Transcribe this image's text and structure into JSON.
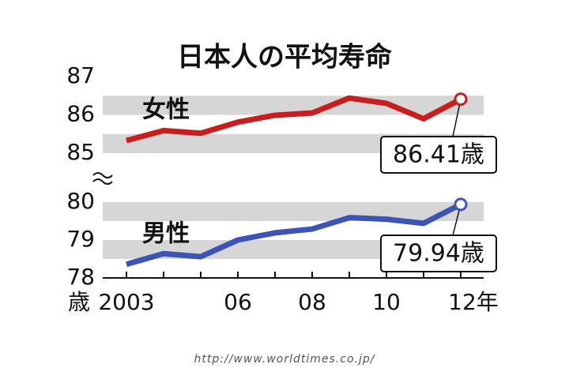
{
  "chart_data": {
    "type": "line",
    "title": "日本人の平均寿命",
    "y_unit": "歳",
    "categories": [
      "2003",
      null,
      null,
      "06",
      null,
      "08",
      null,
      "10",
      null,
      "12年"
    ],
    "ylim": [
      78,
      80
    ],
    "yticks": [
      78,
      79,
      80
    ],
    "y2lim": [
      85,
      87
    ],
    "y2ticks": [
      85,
      86,
      87
    ],
    "series": [
      {
        "name": "女性",
        "color": "#c81e1e",
        "axis": "y2",
        "values": [
          85.33,
          85.59,
          85.52,
          85.81,
          85.99,
          86.05,
          86.44,
          86.3,
          85.9,
          86.41
        ],
        "value_labels": [
          null,
          null,
          null,
          null,
          null,
          null,
          null,
          null,
          null,
          "86.41歳"
        ]
      },
      {
        "name": "男性",
        "color": "#3c55b4",
        "values": [
          78.36,
          78.64,
          78.56,
          79.0,
          79.19,
          79.29,
          79.59,
          79.55,
          79.44,
          79.94
        ],
        "value_labels": [
          null,
          null,
          null,
          null,
          null,
          null,
          null,
          null,
          null,
          "79.94歳"
        ]
      }
    ],
    "source": "http://www.worldtimes.co.jp/"
  }
}
